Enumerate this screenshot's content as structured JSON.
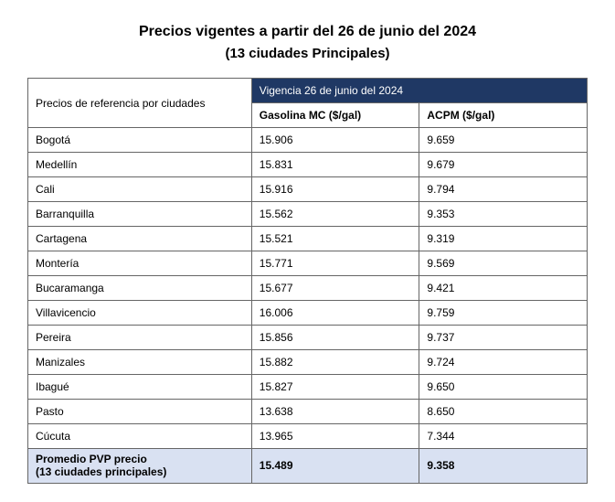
{
  "title": "Precios vigentes a partir del 26 de junio del 2024",
  "subtitle": "(13 ciudades Principales)",
  "table": {
    "type": "table",
    "row_header": "Precios de referencia por ciudades",
    "banner": "Vigencia 26 de junio del 2024",
    "columns": [
      "Gasolina MC ($/gal)",
      "ACPM ($/gal)"
    ],
    "rows": [
      {
        "city": "Bogotá",
        "gas": "15.906",
        "acpm": "9.659"
      },
      {
        "city": "Medellín",
        "gas": "15.831",
        "acpm": "9.679"
      },
      {
        "city": "Cali",
        "gas": "15.916",
        "acpm": "9.794"
      },
      {
        "city": "Barranquilla",
        "gas": "15.562",
        "acpm": "9.353"
      },
      {
        "city": "Cartagena",
        "gas": "15.521",
        "acpm": "9.319"
      },
      {
        "city": "Montería",
        "gas": "15.771",
        "acpm": "9.569"
      },
      {
        "city": "Bucaramanga",
        "gas": "15.677",
        "acpm": "9.421"
      },
      {
        "city": "Villavicencio",
        "gas": "16.006",
        "acpm": "9.759"
      },
      {
        "city": "Pereira",
        "gas": "15.856",
        "acpm": "9.737"
      },
      {
        "city": "Manizales",
        "gas": "15.882",
        "acpm": "9.724"
      },
      {
        "city": "Ibagué",
        "gas": "15.827",
        "acpm": "9.650"
      },
      {
        "city": "Pasto",
        "gas": "13.638",
        "acpm": "8.650"
      },
      {
        "city": "Cúcuta",
        "gas": "13.965",
        "acpm": "7.344"
      }
    ],
    "average": {
      "label_line1": "Promedio PVP precio",
      "label_line2": "(13 ciudades principales)",
      "gas": "15.489",
      "acpm": "9.358"
    },
    "colors": {
      "banner_bg": "#1f3864",
      "banner_text": "#ffffff",
      "avg_bg": "#d9e1f2",
      "border": "#666666",
      "background": "#ffffff",
      "text": "#000000"
    },
    "font": {
      "family": "Arial",
      "title_size_pt": 16,
      "subtitle_size_pt": 15,
      "body_size_pt": 12
    }
  }
}
